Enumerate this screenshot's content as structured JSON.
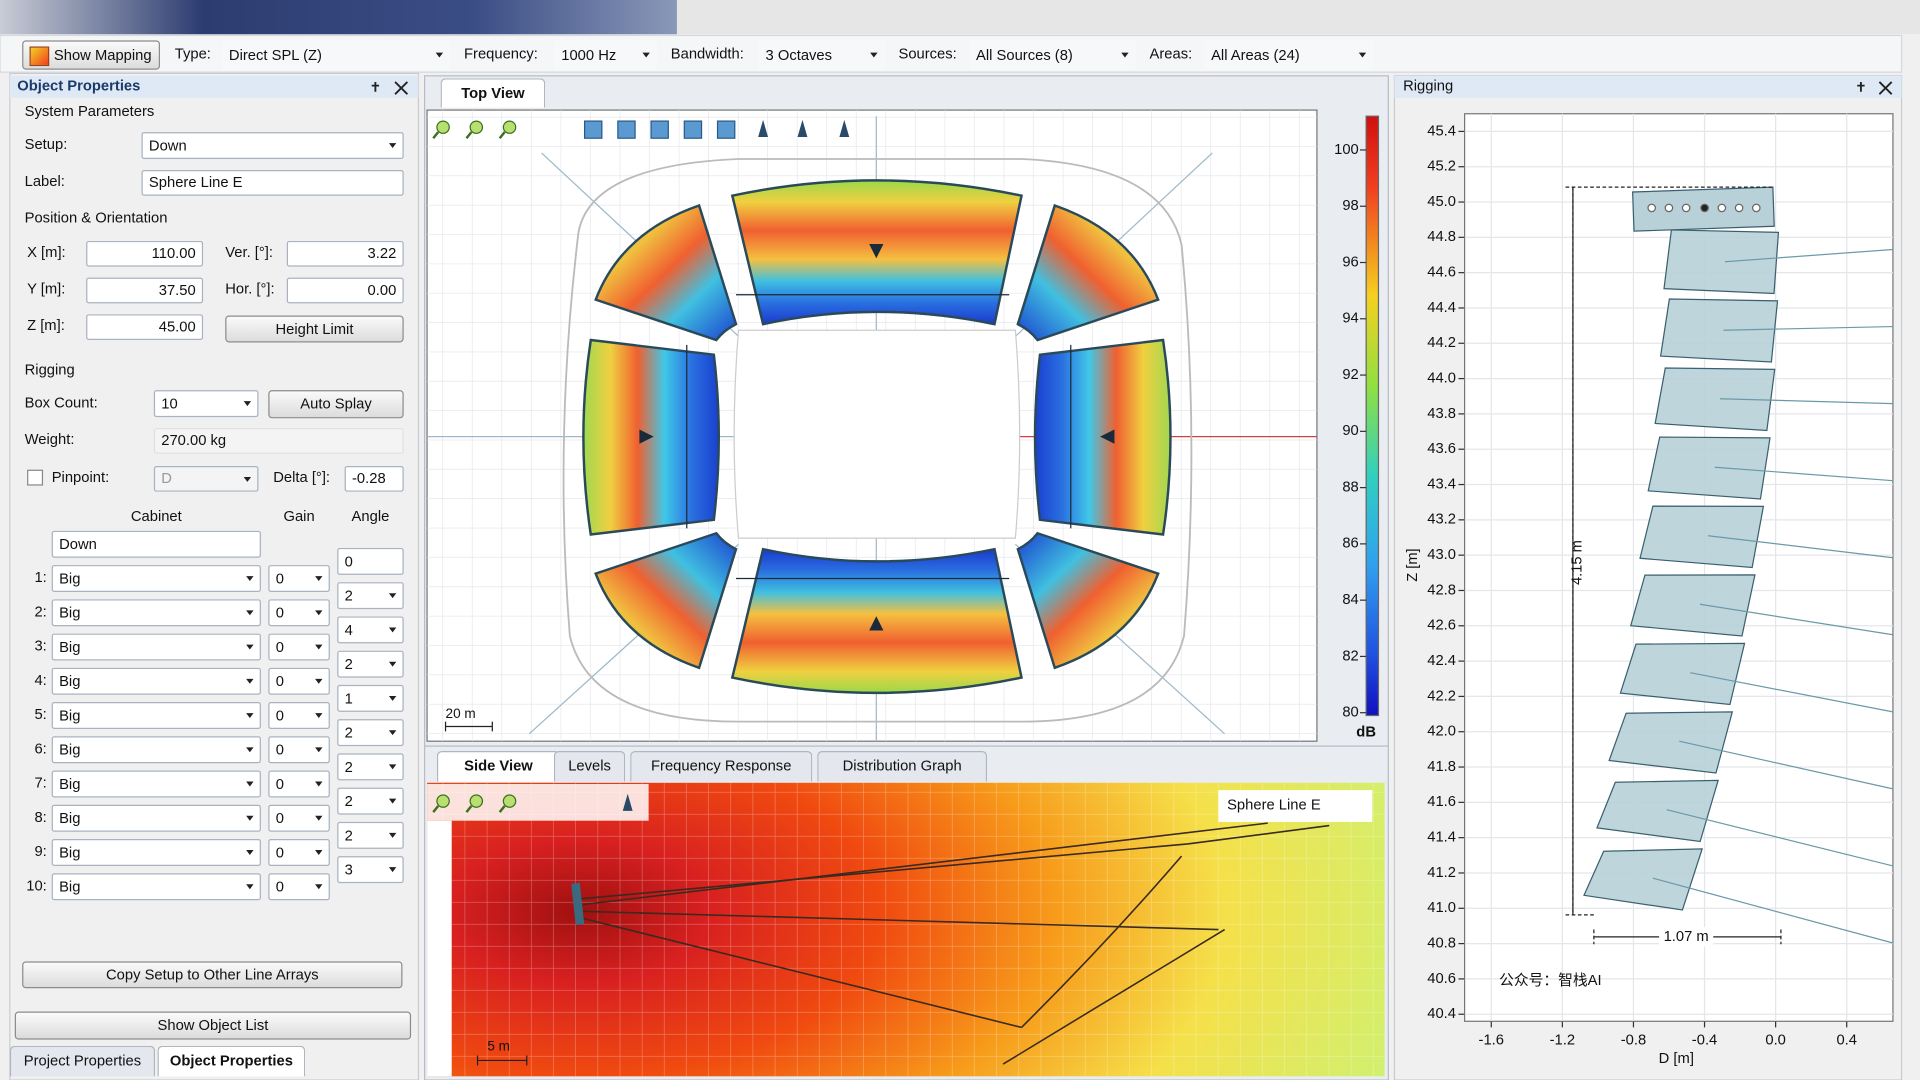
{
  "toolbar": {
    "show_mapping": "Show Mapping",
    "type_label": "Type:",
    "type": "Direct SPL (Z)",
    "frequency_label": "Frequency:",
    "frequency": "1000 Hz",
    "bandwidth_label": "Bandwidth:",
    "bandwidth": "3 Octaves",
    "sources_label": "Sources:",
    "sources": "All Sources (8)",
    "areas_label": "Areas:",
    "areas": "All Areas (24)"
  },
  "object_properties": {
    "title": "Object Properties",
    "system_parameters": "System Parameters",
    "setup_label": "Setup:",
    "setup": "Down",
    "label_label": "Label:",
    "label": "Sphere Line E",
    "position_orientation": "Position & Orientation",
    "x_label": "X [m]:",
    "x": "110.00",
    "ver_label": "Ver. [°]:",
    "ver": "3.22",
    "y_label": "Y [m]:",
    "y": "37.50",
    "hor_label": "Hor. [°]:",
    "hor": "0.00",
    "z_label": "Z [m]:",
    "z": "45.00",
    "height_limit": "Height Limit",
    "rigging": "Rigging",
    "box_count_label": "Box Count:",
    "box_count": "10",
    "auto_splay": "Auto Splay",
    "weight_label": "Weight:",
    "weight": "270.00 kg",
    "pinpoint_label": "Pinpoint:",
    "pinpoint": "D",
    "delta_label": "Delta [°]:",
    "delta": "-0.28",
    "cabinet_table": {
      "headers": [
        "Cabinet",
        "Gain",
        "Angle"
      ],
      "top_cabinet": "Down",
      "top_angle": "0",
      "rows": [
        {
          "index": "1:",
          "cabinet": "Big",
          "gain": "0",
          "angle": "2"
        },
        {
          "index": "2:",
          "cabinet": "Big",
          "gain": "0",
          "angle": "4"
        },
        {
          "index": "3:",
          "cabinet": "Big",
          "gain": "0",
          "angle": "2"
        },
        {
          "index": "4:",
          "cabinet": "Big",
          "gain": "0",
          "angle": "1"
        },
        {
          "index": "5:",
          "cabinet": "Big",
          "gain": "0",
          "angle": "2"
        },
        {
          "index": "6:",
          "cabinet": "Big",
          "gain": "0",
          "angle": "2"
        },
        {
          "index": "7:",
          "cabinet": "Big",
          "gain": "0",
          "angle": "2"
        },
        {
          "index": "8:",
          "cabinet": "Big",
          "gain": "0",
          "angle": "2"
        },
        {
          "index": "9:",
          "cabinet": "Big",
          "gain": "0",
          "angle": "3"
        },
        {
          "index": "10:",
          "cabinet": "Big",
          "gain": "0"
        }
      ]
    },
    "copy_setup": "Copy Setup to Other Line Arrays",
    "show_object_list": "Show Object List",
    "tabs": [
      "Project Properties",
      "Object Properties"
    ]
  },
  "top_view": {
    "tab": "Top View",
    "scale": "20 m",
    "colorbar": {
      "unit": "dB",
      "lim": [
        79.9,
        101.2
      ],
      "ticks": [
        80,
        82,
        84,
        86,
        88,
        90,
        92,
        94,
        96,
        98,
        100
      ]
    }
  },
  "side_view": {
    "tabs": [
      "Side View",
      "Levels",
      "Frequency Response",
      "Distribution Graph"
    ],
    "object": "Sphere Line E",
    "scale": "5 m"
  },
  "rigging": {
    "title": "Rigging",
    "ylabel": "Z [m]",
    "xlabel": "D [m]",
    "ylim": [
      40.36,
      45.5
    ],
    "yticks": [
      40.4,
      40.6,
      40.8,
      {
        "value": 41,
        "label": "41.0"
      },
      41.2,
      41.4,
      41.6,
      41.8,
      {
        "value": 42,
        "label": "42.0"
      },
      42.2,
      42.4,
      42.6,
      42.8,
      {
        "value": 43,
        "label": "43.0"
      },
      43.2,
      43.4,
      43.6,
      43.8,
      {
        "value": 44,
        "label": "44.0"
      },
      44.2,
      44.4,
      44.6,
      44.8,
      {
        "value": 45,
        "label": "45.0"
      },
      45.2,
      45.4
    ],
    "xlim": [
      -1.75,
      0.66
    ],
    "xticks": [
      -1.6,
      -1.2,
      -0.8,
      -0.4,
      {
        "value": 0,
        "label": "0.0"
      },
      0.4
    ],
    "height_annotation": "4.15 m",
    "width_annotation": "1.07 m",
    "watermark": "公众号：智栈AI"
  }
}
